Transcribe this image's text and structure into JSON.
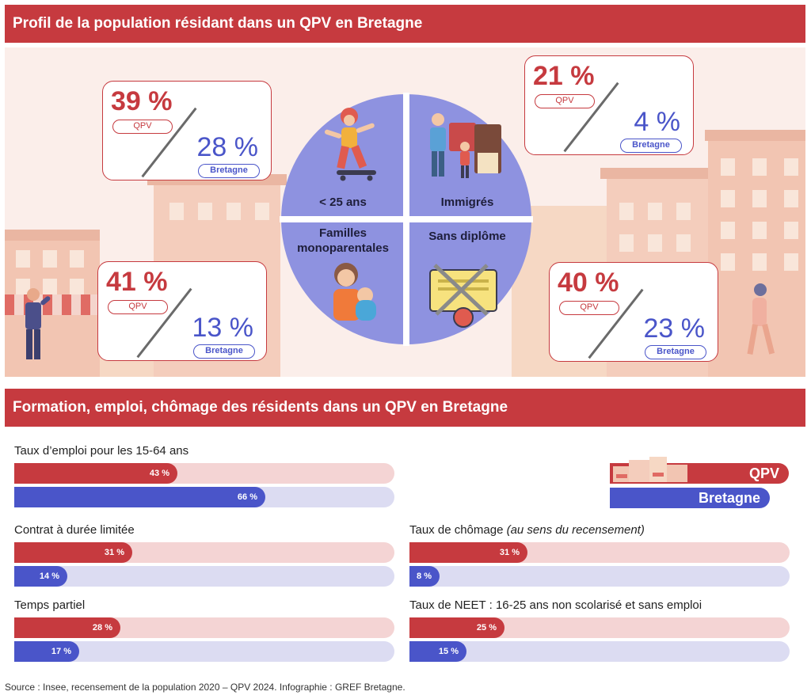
{
  "banners": {
    "profile": "Profil de la population résidant dans un QPV en Bretagne",
    "work": "Formation, emploi, chômage des résidents dans un QPV en Bretagne"
  },
  "colors": {
    "qpv": "#c63a3f",
    "bretagne": "#4a55c9",
    "pie": "#8e92e0",
    "banner": "#c63a3f"
  },
  "cards": [
    {
      "id": "young",
      "qpv": "39 %",
      "qpv_label": "QPV",
      "bretagne": "28 %",
      "bretagne_label": "Bretagne"
    },
    {
      "id": "immigrants",
      "qpv": "21 %",
      "qpv_label": "QPV",
      "bretagne": "4 %",
      "bretagne_label": "Bretagne"
    },
    {
      "id": "single-parent",
      "qpv": "41 %",
      "qpv_label": "QPV",
      "bretagne": "13 %",
      "bretagne_label": "Bretagne"
    },
    {
      "id": "no-diploma",
      "qpv": "40 %",
      "qpv_label": "QPV",
      "bretagne": "23 %",
      "bretagne_label": "Bretagne"
    }
  ],
  "pie_labels": {
    "young": "< 25 ans",
    "immigrants": "Immigrés",
    "single_parent_1": "Familles",
    "single_parent_2": "monoparentales",
    "no_diploma": "Sans diplôme"
  },
  "legend": {
    "qpv": "QPV",
    "bretagne": "Bretagne"
  },
  "chart_data": {
    "type": "bar",
    "unit": "%",
    "xlim": [
      0,
      100
    ],
    "series": [
      {
        "name": "QPV",
        "color": "#c63a3f"
      },
      {
        "name": "Bretagne",
        "color": "#4a55c9"
      }
    ],
    "indicators": [
      {
        "id": "emploi",
        "title": "Taux d’emploi pour les 15-64 ans",
        "note": "",
        "qpv": 43,
        "bretagne": 66,
        "qpv_label": "43 %",
        "bretagne_label": "66 %"
      },
      {
        "id": "cdl",
        "title": "Contrat à durée limitée",
        "note": "",
        "qpv": 31,
        "bretagne": 14,
        "qpv_label": "31 %",
        "bretagne_label": "14 %"
      },
      {
        "id": "partiel",
        "title": "Temps partiel",
        "note": "",
        "qpv": 28,
        "bretagne": 17,
        "qpv_label": "28 %",
        "bretagne_label": "17 %"
      },
      {
        "id": "chomage",
        "title": "Taux de chômage ",
        "note": "(au sens du recensement)",
        "qpv": 31,
        "bretagne": 8,
        "qpv_label": "31 %",
        "bretagne_label": "8 %"
      },
      {
        "id": "neet",
        "title": "Taux de NEET : 16-25 ans non scolarisé et sans emploi",
        "note": "",
        "qpv": 25,
        "bretagne": 15,
        "qpv_label": "25 %",
        "bretagne_label": "15 %"
      }
    ],
    "profile": [
      {
        "category": "< 25 ans",
        "qpv": 39,
        "bretagne": 28
      },
      {
        "category": "Immigrés",
        "qpv": 21,
        "bretagne": 4
      },
      {
        "category": "Familles monoparentales",
        "qpv": 41,
        "bretagne": 13
      },
      {
        "category": "Sans diplôme",
        "qpv": 40,
        "bretagne": 23
      }
    ]
  },
  "source": "Source : Insee, recensement de la population 2020 – QPV 2024. Infographie : GREF Bretagne."
}
